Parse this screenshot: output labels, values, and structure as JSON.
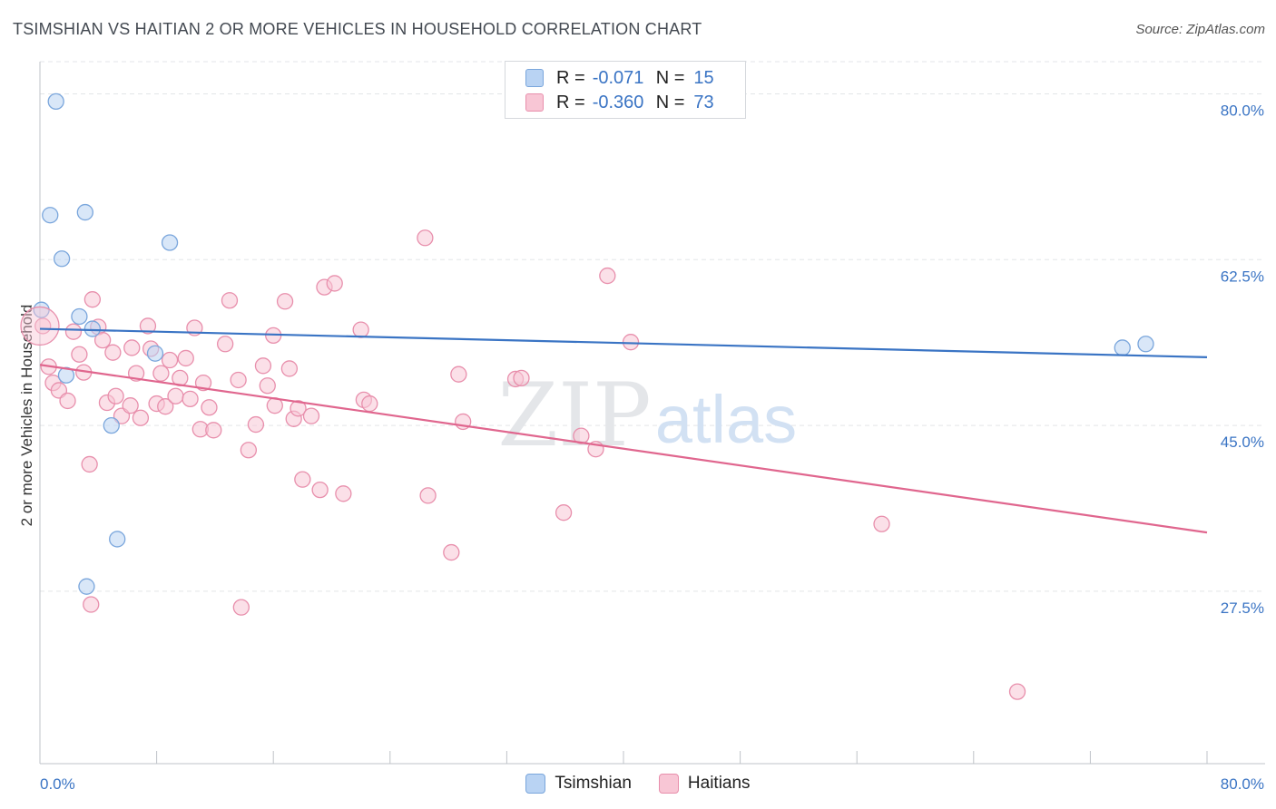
{
  "title": "TSIMSHIAN VS HAITIAN 2 OR MORE VEHICLES IN HOUSEHOLD CORRELATION CHART",
  "source": "Source: ZipAtlas.com",
  "watermark": {
    "zip": "ZIP",
    "atlas": "atlas"
  },
  "colors": {
    "tsimshian_fill": "#b9d3f3",
    "tsimshian_stroke": "#7aa6dc",
    "tsimshian_line": "#3a74c4",
    "haitian_fill": "#f8c6d5",
    "haitian_stroke": "#e88fac",
    "haitian_line": "#e0668e",
    "axis_label": "#3a74c4"
  },
  "legend": {
    "rows": [
      {
        "r_label": "R =",
        "r_value": "-0.071",
        "n_label": "N =",
        "n_value": "15"
      },
      {
        "r_label": "R =",
        "r_value": "-0.360",
        "n_label": "N =",
        "n_value": "73"
      }
    ]
  },
  "bottom_legend": {
    "tsimshian": "Tsimshian",
    "haitians": "Haitians"
  },
  "chart_data": {
    "type": "scatter",
    "title": "TSIMSHIAN VS HAITIAN 2 OR MORE VEHICLES IN HOUSEHOLD CORRELATION CHART",
    "xlabel": "",
    "ylabel": "2 or more Vehicles in Household",
    "xlim": [
      0,
      80
    ],
    "ylim": [
      9.3,
      83.4
    ],
    "x_tick_labels": [
      "0.0%",
      "80.0%"
    ],
    "y_ticks": [
      27.5,
      45.0,
      62.5,
      80.0
    ],
    "y_tick_labels": [
      "27.5%",
      "45.0%",
      "62.5%",
      "80.0%"
    ],
    "grid": true,
    "series": [
      {
        "name": "Tsimshian",
        "points": [
          [
            1.1,
            79.2
          ],
          [
            0.7,
            67.2
          ],
          [
            3.1,
            67.5
          ],
          [
            1.5,
            62.6
          ],
          [
            8.9,
            64.3
          ],
          [
            0.1,
            57.2
          ],
          [
            2.7,
            56.5
          ],
          [
            3.6,
            55.2
          ],
          [
            7.9,
            52.6
          ],
          [
            1.8,
            50.3
          ],
          [
            4.9,
            45.0
          ],
          [
            5.3,
            33.0
          ],
          [
            3.2,
            28.0
          ],
          [
            74.2,
            53.2
          ],
          [
            75.8,
            53.6
          ]
        ],
        "trend": [
          [
            0,
            55.2
          ],
          [
            80,
            52.2
          ]
        ]
      },
      {
        "name": "Haitians",
        "points": [
          [
            0.2,
            55.5
          ],
          [
            0.6,
            51.2
          ],
          [
            0.9,
            49.5
          ],
          [
            1.3,
            48.7
          ],
          [
            1.9,
            47.6
          ],
          [
            2.3,
            54.9
          ],
          [
            2.7,
            52.5
          ],
          [
            3.0,
            50.6
          ],
          [
            3.4,
            40.9
          ],
          [
            3.5,
            26.1
          ],
          [
            3.6,
            58.3
          ],
          [
            4.0,
            55.4
          ],
          [
            4.3,
            54.0
          ],
          [
            4.6,
            47.4
          ],
          [
            5.0,
            52.7
          ],
          [
            5.2,
            48.1
          ],
          [
            5.6,
            46.0
          ],
          [
            6.2,
            47.1
          ],
          [
            6.3,
            53.2
          ],
          [
            6.6,
            50.5
          ],
          [
            6.9,
            45.8
          ],
          [
            7.4,
            55.5
          ],
          [
            7.6,
            53.1
          ],
          [
            8.0,
            47.3
          ],
          [
            8.3,
            50.5
          ],
          [
            8.6,
            47.0
          ],
          [
            8.9,
            51.9
          ],
          [
            9.3,
            48.1
          ],
          [
            9.6,
            50.0
          ],
          [
            10.0,
            52.1
          ],
          [
            10.3,
            47.8
          ],
          [
            10.6,
            55.3
          ],
          [
            11.0,
            44.6
          ],
          [
            11.2,
            49.5
          ],
          [
            11.6,
            46.9
          ],
          [
            11.9,
            44.5
          ],
          [
            12.7,
            53.6
          ],
          [
            13.0,
            58.2
          ],
          [
            13.6,
            49.8
          ],
          [
            13.8,
            25.8
          ],
          [
            14.3,
            42.4
          ],
          [
            14.8,
            45.1
          ],
          [
            15.3,
            51.3
          ],
          [
            15.6,
            49.2
          ],
          [
            16.0,
            54.5
          ],
          [
            16.1,
            47.1
          ],
          [
            16.8,
            58.1
          ],
          [
            17.1,
            51.0
          ],
          [
            17.4,
            45.7
          ],
          [
            17.7,
            46.8
          ],
          [
            18.0,
            39.3
          ],
          [
            18.6,
            46.0
          ],
          [
            19.2,
            38.2
          ],
          [
            19.5,
            59.6
          ],
          [
            20.2,
            60.0
          ],
          [
            20.8,
            37.8
          ],
          [
            22.0,
            55.1
          ],
          [
            22.2,
            47.7
          ],
          [
            22.6,
            47.3
          ],
          [
            26.4,
            64.8
          ],
          [
            26.6,
            37.6
          ],
          [
            28.2,
            31.6
          ],
          [
            28.7,
            50.4
          ],
          [
            29.0,
            45.4
          ],
          [
            32.6,
            49.9
          ],
          [
            33.0,
            50.0
          ],
          [
            35.9,
            35.8
          ],
          [
            37.1,
            43.9
          ],
          [
            38.1,
            42.5
          ],
          [
            38.9,
            60.8
          ],
          [
            40.5,
            53.8
          ],
          [
            57.7,
            34.6
          ],
          [
            67.0,
            16.9
          ]
        ],
        "trend": [
          [
            0,
            51.4
          ],
          [
            80,
            33.7
          ]
        ]
      }
    ]
  }
}
